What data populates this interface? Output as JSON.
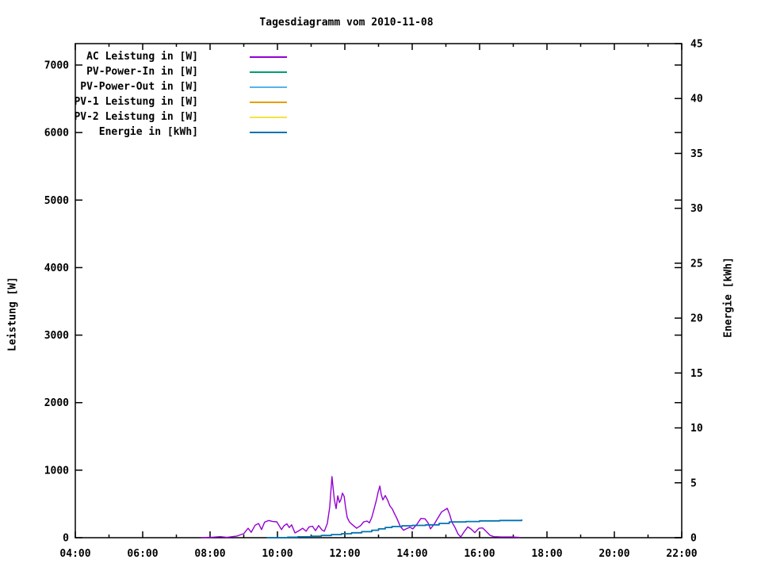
{
  "chart_data": {
    "type": "line",
    "title": "Tagesdiagramm vom 2010-11-08",
    "ylabel": "Leistung [W]",
    "y2label": "Energie [kWh]",
    "grid": false,
    "legend_position": "top-left-inside",
    "x_axis": {
      "range_hours": [
        4,
        22
      ],
      "major_tick_hours": [
        4,
        6,
        8,
        10,
        12,
        14,
        16,
        18,
        20,
        22
      ],
      "major_tick_labels": [
        "04:00",
        "06:00",
        "08:00",
        "10:00",
        "12:00",
        "14:00",
        "16:00",
        "18:00",
        "20:00",
        "22:00"
      ],
      "minor_tick_hours": [
        5,
        7,
        9,
        11,
        13,
        15,
        17,
        19,
        21
      ]
    },
    "y1_axis": {
      "range": [
        0,
        7000
      ],
      "tick_values": [
        0,
        1000,
        2000,
        3000,
        4000,
        5000,
        6000,
        7000
      ],
      "tick_labels": [
        "0",
        "1000",
        "2000",
        "3000",
        "4000",
        "5000",
        "6000",
        "7000"
      ]
    },
    "y2_axis": {
      "range": [
        0,
        45
      ],
      "tick_values": [
        0,
        5,
        10,
        15,
        20,
        25,
        30,
        35,
        40,
        45
      ],
      "tick_labels": [
        "0",
        "5",
        "10",
        "15",
        "20",
        "25",
        "30",
        "35",
        "40",
        "45"
      ]
    },
    "series": [
      {
        "id": "ac-leistung",
        "name": "AC Leistung in [W]",
        "color": "#9400D3",
        "axis": "y1",
        "style": "line",
        "width": 1.4,
        "points": [
          [
            7.75,
            0
          ],
          [
            8.1,
            8
          ],
          [
            8.3,
            15
          ],
          [
            8.5,
            5
          ],
          [
            8.8,
            25
          ],
          [
            9.0,
            60
          ],
          [
            9.13,
            140
          ],
          [
            9.22,
            80
          ],
          [
            9.34,
            185
          ],
          [
            9.44,
            210
          ],
          [
            9.53,
            120
          ],
          [
            9.62,
            230
          ],
          [
            9.74,
            255
          ],
          [
            9.86,
            240
          ],
          [
            9.98,
            235
          ],
          [
            10.05,
            180
          ],
          [
            10.12,
            120
          ],
          [
            10.19,
            175
          ],
          [
            10.28,
            205
          ],
          [
            10.35,
            150
          ],
          [
            10.42,
            190
          ],
          [
            10.52,
            70
          ],
          [
            10.64,
            105
          ],
          [
            10.75,
            140
          ],
          [
            10.85,
            95
          ],
          [
            10.94,
            160
          ],
          [
            11.04,
            170
          ],
          [
            11.13,
            105
          ],
          [
            11.22,
            180
          ],
          [
            11.32,
            115
          ],
          [
            11.39,
            95
          ],
          [
            11.48,
            210
          ],
          [
            11.55,
            450
          ],
          [
            11.6,
            780
          ],
          [
            11.62,
            905
          ],
          [
            11.65,
            750
          ],
          [
            11.69,
            560
          ],
          [
            11.74,
            430
          ],
          [
            11.79,
            620
          ],
          [
            11.84,
            520
          ],
          [
            11.88,
            560
          ],
          [
            11.93,
            660
          ],
          [
            11.98,
            610
          ],
          [
            12.02,
            460
          ],
          [
            12.07,
            300
          ],
          [
            12.14,
            230
          ],
          [
            12.24,
            185
          ],
          [
            12.35,
            140
          ],
          [
            12.47,
            180
          ],
          [
            12.56,
            235
          ],
          [
            12.66,
            245
          ],
          [
            12.73,
            220
          ],
          [
            12.8,
            300
          ],
          [
            12.87,
            430
          ],
          [
            12.94,
            560
          ],
          [
            12.99,
            680
          ],
          [
            13.04,
            765
          ],
          [
            13.08,
            640
          ],
          [
            13.13,
            560
          ],
          [
            13.2,
            625
          ],
          [
            13.27,
            555
          ],
          [
            13.34,
            470
          ],
          [
            13.41,
            425
          ],
          [
            13.48,
            350
          ],
          [
            13.55,
            280
          ],
          [
            13.65,
            165
          ],
          [
            13.74,
            110
          ],
          [
            13.84,
            135
          ],
          [
            13.93,
            155
          ],
          [
            14.02,
            130
          ],
          [
            14.14,
            200
          ],
          [
            14.26,
            285
          ],
          [
            14.38,
            280
          ],
          [
            14.47,
            220
          ],
          [
            14.54,
            130
          ],
          [
            14.66,
            205
          ],
          [
            14.78,
            305
          ],
          [
            14.87,
            380
          ],
          [
            14.96,
            410
          ],
          [
            15.04,
            435
          ],
          [
            15.11,
            345
          ],
          [
            15.18,
            230
          ],
          [
            15.27,
            150
          ],
          [
            15.36,
            55
          ],
          [
            15.44,
            10
          ],
          [
            15.55,
            95
          ],
          [
            15.65,
            160
          ],
          [
            15.74,
            130
          ],
          [
            15.86,
            75
          ],
          [
            15.98,
            140
          ],
          [
            16.09,
            145
          ],
          [
            16.19,
            95
          ],
          [
            16.31,
            35
          ],
          [
            16.42,
            15
          ],
          [
            16.64,
            10
          ],
          [
            16.94,
            10
          ],
          [
            17.18,
            5
          ]
        ]
      },
      {
        "id": "pv-power-in",
        "name": "PV-Power-In in [W]",
        "color": "#009E73",
        "axis": "y1",
        "style": "line",
        "width": 1.4,
        "points": []
      },
      {
        "id": "pv-power-out",
        "name": "PV-Power-Out in [W]",
        "color": "#56B4E9",
        "axis": "y1",
        "style": "line",
        "width": 1.4,
        "points": []
      },
      {
        "id": "pv1-leistung",
        "name": "PV-1 Leistung in [W]",
        "color": "#E69F00",
        "axis": "y1",
        "style": "line",
        "width": 1.4,
        "points": []
      },
      {
        "id": "pv2-leistung",
        "name": "PV-2 Leistung in [W]",
        "color": "#F0E442",
        "axis": "y1",
        "style": "line",
        "width": 1.4,
        "points": []
      },
      {
        "id": "energie",
        "name": "Energie in [kWh]",
        "color": "#0072B2",
        "axis": "y2",
        "style": "steps",
        "width": 1.8,
        "points": [
          [
            9.7,
            0
          ],
          [
            10.3,
            0.04
          ],
          [
            10.6,
            0.08
          ],
          [
            11.0,
            0.14
          ],
          [
            11.3,
            0.2
          ],
          [
            11.6,
            0.28
          ],
          [
            11.9,
            0.36
          ],
          [
            12.2,
            0.45
          ],
          [
            12.5,
            0.55
          ],
          [
            12.8,
            0.68
          ],
          [
            13.0,
            0.8
          ],
          [
            13.2,
            0.93
          ],
          [
            13.4,
            1.02
          ],
          [
            13.7,
            1.08
          ],
          [
            14.0,
            1.12
          ],
          [
            14.4,
            1.17
          ],
          [
            14.8,
            1.3
          ],
          [
            15.1,
            1.44
          ],
          [
            15.6,
            1.47
          ],
          [
            16.0,
            1.53
          ],
          [
            16.6,
            1.57
          ],
          [
            17.25,
            1.62
          ]
        ]
      }
    ]
  }
}
